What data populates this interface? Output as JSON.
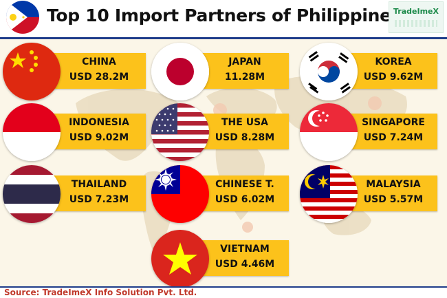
{
  "title": "Top 10 Import Partners of Philippines",
  "logo_text": "TradeImeX",
  "source": "Source: TradeImeX Info Solution Pvt. Ltd.",
  "colors": {
    "label_bg": "#fcc21b",
    "header_rule": "#1f3d8a",
    "source_text": "#c0392b"
  },
  "partners": [
    {
      "name": "CHINA",
      "value": "USD 28.2M",
      "flag": "china-flag"
    },
    {
      "name": "JAPAN",
      "value": "11.28M",
      "flag": "japan-flag"
    },
    {
      "name": "KOREA",
      "value": "USD 9.62M",
      "flag": "korea-flag"
    },
    {
      "name": "INDONESIA",
      "value": "USD 9.02M",
      "flag": "indonesia-flag"
    },
    {
      "name": "THE USA",
      "value": "USD 8.28M",
      "flag": "usa-flag"
    },
    {
      "name": "SINGAPORE",
      "value": "USD 7.24M",
      "flag": "singapore-flag"
    },
    {
      "name": "THAILAND",
      "value": "USD 7.23M",
      "flag": "thailand-flag"
    },
    {
      "name": "CHINESE T.",
      "value": "USD 6.02M",
      "flag": "taiwan-flag"
    },
    {
      "name": "MALAYSIA",
      "value": "USD 5.57M",
      "flag": "malaysia-flag"
    },
    {
      "name": "VIETNAM",
      "value": "USD 4.46M",
      "flag": "vietnam-flag"
    }
  ]
}
